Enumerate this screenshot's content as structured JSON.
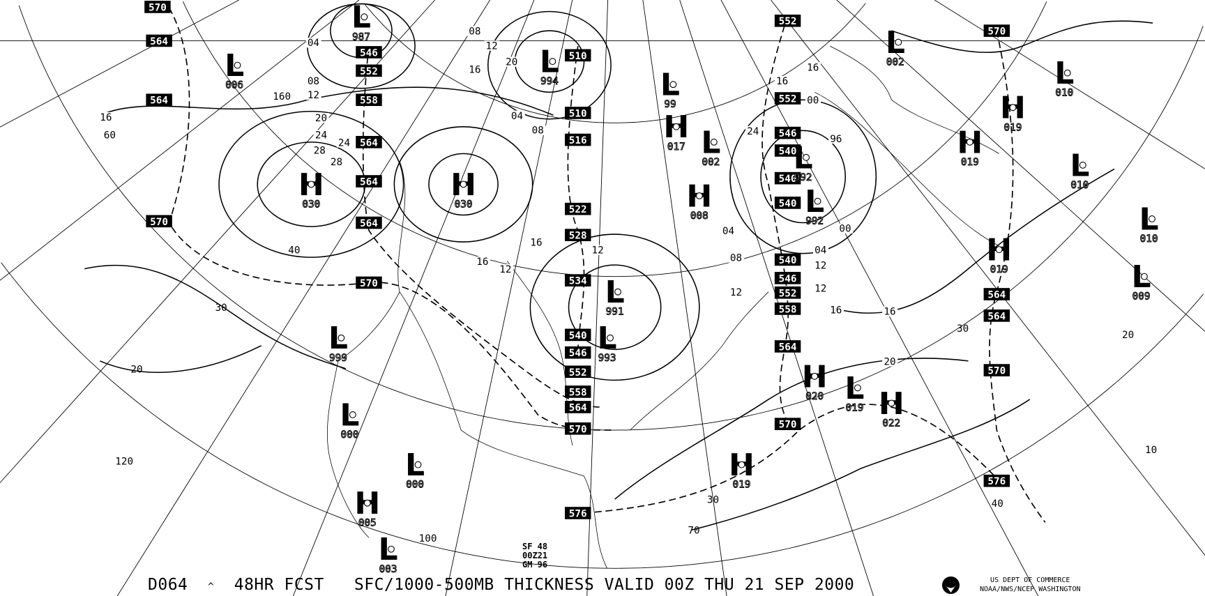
{
  "footer": {
    "product_id": "D064",
    "caret": "^",
    "forecast": "48HR FCST",
    "title": "SFC/1000-500MB THICKNESS VALID 00Z THU 21 SEP 2000"
  },
  "stamp": [
    "SF 48",
    "00Z21",
    "GM 96"
  ],
  "agency": {
    "line1": "US DEPT OF COMMERCE",
    "line2": "NOAA/NWS/NCEP WASHINGTON",
    "logo_icon": "noaa-logo-icon"
  },
  "pressure_centers": [
    {
      "type": "L",
      "value": "006"
    },
    {
      "type": "L",
      "value": "987"
    },
    {
      "type": "L",
      "value": "994"
    },
    {
      "type": "H",
      "value": "030"
    },
    {
      "type": "H",
      "value": "030"
    },
    {
      "type": "L",
      "value": "99"
    },
    {
      "type": "H",
      "value": "017"
    },
    {
      "type": "L",
      "value": "002"
    },
    {
      "type": "L",
      "value": "992"
    },
    {
      "type": "L",
      "value": "992"
    },
    {
      "type": "H",
      "value": "008"
    },
    {
      "type": "L",
      "value": "002"
    },
    {
      "type": "L",
      "value": "010"
    },
    {
      "type": "H",
      "value": "019"
    },
    {
      "type": "H",
      "value": "019"
    },
    {
      "type": "L",
      "value": "010"
    },
    {
      "type": "L",
      "value": "010"
    },
    {
      "type": "H",
      "value": "019"
    },
    {
      "type": "L",
      "value": "009"
    },
    {
      "type": "L",
      "value": "991"
    },
    {
      "type": "L",
      "value": "993"
    },
    {
      "type": "L",
      "value": "999"
    },
    {
      "type": "L",
      "value": "000"
    },
    {
      "type": "L",
      "value": "000"
    },
    {
      "type": "H",
      "value": "005"
    },
    {
      "type": "L",
      "value": "003"
    },
    {
      "type": "H",
      "value": "020"
    },
    {
      "type": "L",
      "value": "019"
    },
    {
      "type": "H",
      "value": "022"
    },
    {
      "type": "H",
      "value": "019"
    }
  ],
  "thickness_labels": [
    "570",
    "564",
    "564",
    "570",
    "546",
    "552",
    "558",
    "564",
    "564",
    "564",
    "570",
    "510",
    "510",
    "516",
    "522",
    "528",
    "534",
    "540",
    "546",
    "552",
    "558",
    "564",
    "570",
    "576",
    "552",
    "552",
    "546",
    "540",
    "540",
    "540",
    "540",
    "546",
    "552",
    "558",
    "564",
    "570",
    "570",
    "564",
    "564",
    "570",
    "576"
  ],
  "isobar_labels": [
    "16",
    "12",
    "08",
    "04",
    "20",
    "24",
    "28",
    "24",
    "28",
    "20",
    "16",
    "12",
    "08",
    "04",
    "08",
    "12",
    "16",
    "16",
    "12",
    "16",
    "12",
    "12",
    "20",
    "16",
    "16",
    "08",
    "04",
    "12",
    "16",
    "24",
    "00",
    "96",
    "00",
    "04"
  ],
  "graticule_labels": [
    "60",
    "40",
    "30",
    "20",
    "120",
    "100",
    "70",
    "30",
    "30",
    "40",
    "20",
    "10",
    "160"
  ]
}
